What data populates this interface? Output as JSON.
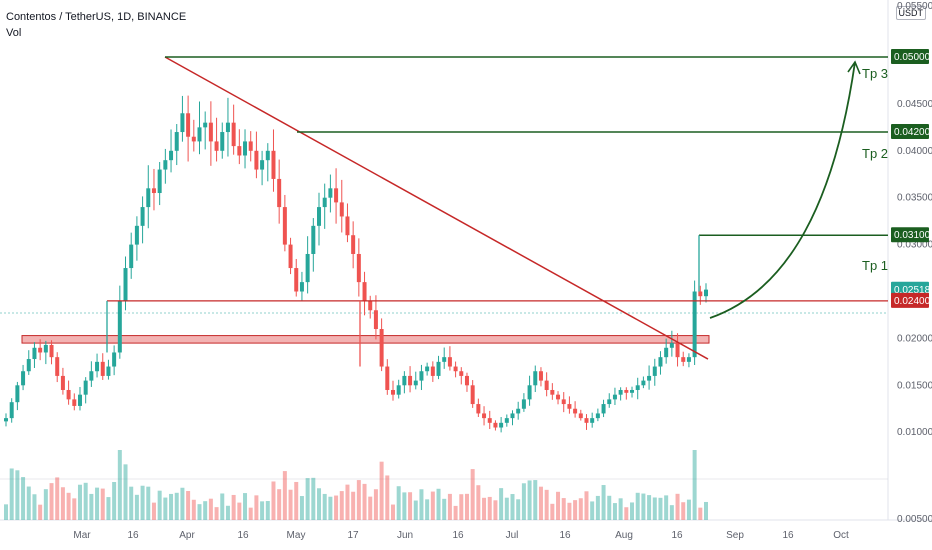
{
  "header": {
    "title": "Contentos / TetherUS, 1D, BINANCE",
    "volume_label": "Vol",
    "currency_badge": "USDT"
  },
  "colors": {
    "up": "#26a69a",
    "down": "#ef5350",
    "trend": "#c62828",
    "target": "#1b5e20",
    "last_price": "#26a69a"
  },
  "chart_data": {
    "type": "candlestick",
    "y_axis_ticks": [
      "0.05500",
      "0.04500",
      "0.04000",
      "0.03500",
      "0.03000",
      "0.02000",
      "0.01500",
      "0.01000",
      "0.00500"
    ],
    "x_axis_ticks": [
      "Mar",
      "16",
      "Apr",
      "16",
      "May",
      "17",
      "Jun",
      "16",
      "Jul",
      "16",
      "Aug",
      "16",
      "Sep",
      "16",
      "Oct"
    ],
    "ylim": [
      0.005,
      0.0555
    ],
    "price_tags": [
      {
        "label": "0.05000",
        "value": 0.05,
        "kind": "target"
      },
      {
        "label": "0.04200",
        "value": 0.042,
        "kind": "target"
      },
      {
        "label": "0.03100",
        "value": 0.031,
        "kind": "target"
      },
      {
        "label": "0.02518",
        "value": 0.02518,
        "kind": "last"
      },
      {
        "label": "0.02400",
        "value": 0.024,
        "kind": "support"
      }
    ],
    "targets": [
      {
        "name": "Tp 3",
        "value": 0.05
      },
      {
        "name": "Tp 2",
        "value": 0.042
      },
      {
        "name": "Tp 1",
        "value": 0.031
      }
    ],
    "support_level": 0.024,
    "resistance_zone": [
      0.0195,
      0.0203
    ],
    "trendline": {
      "from": {
        "date": "2021-03-23",
        "value": 0.05
      },
      "to": {
        "date": "2021-08-21",
        "value": 0.0178
      }
    },
    "close_series": [
      0.0115,
      0.0132,
      0.015,
      0.0165,
      0.0178,
      0.019,
      0.0185,
      0.0193,
      0.018,
      0.016,
      0.0145,
      0.0135,
      0.0128,
      0.014,
      0.0155,
      0.0165,
      0.0175,
      0.016,
      0.017,
      0.0185,
      0.024,
      0.0275,
      0.03,
      0.032,
      0.034,
      0.036,
      0.0355,
      0.038,
      0.039,
      0.04,
      0.042,
      0.044,
      0.0415,
      0.041,
      0.0425,
      0.043,
      0.041,
      0.04,
      0.042,
      0.043,
      0.0405,
      0.0395,
      0.041,
      0.04,
      0.038,
      0.039,
      0.04,
      0.037,
      0.034,
      0.03,
      0.0275,
      0.025,
      0.026,
      0.029,
      0.032,
      0.034,
      0.035,
      0.036,
      0.0345,
      0.033,
      0.031,
      0.029,
      0.026,
      0.024,
      0.023,
      0.021,
      0.017,
      0.0145,
      0.014,
      0.015,
      0.016,
      0.015,
      0.0155,
      0.0165,
      0.017,
      0.016,
      0.0175,
      0.018,
      0.017,
      0.0165,
      0.016,
      0.015,
      0.013,
      0.012,
      0.0115,
      0.011,
      0.0105,
      0.011,
      0.0115,
      0.012,
      0.0125,
      0.0135,
      0.015,
      0.0165,
      0.0155,
      0.0145,
      0.014,
      0.0135,
      0.013,
      0.0125,
      0.012,
      0.0115,
      0.011,
      0.0115,
      0.012,
      0.013,
      0.0135,
      0.014,
      0.0145,
      0.0142,
      0.0145,
      0.015,
      0.0155,
      0.016,
      0.017,
      0.018,
      0.019,
      0.0195,
      0.018,
      0.0175,
      0.018,
      0.025,
      0.0245,
      0.0252
    ],
    "last_value": 0.02518,
    "volume_scale": {
      "max_bar_value": 1.0
    }
  }
}
